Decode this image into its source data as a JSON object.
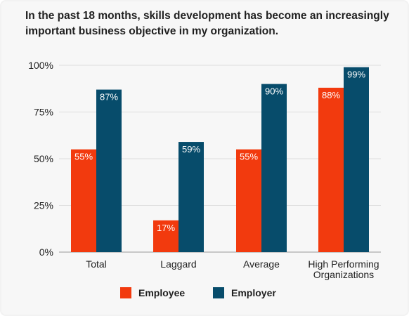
{
  "chart_data": {
    "type": "bar",
    "title": "In the past 18 months, skills development has become an increasingly important business objective in my organization.",
    "categories": [
      [
        "Total"
      ],
      [
        "Laggard"
      ],
      [
        "Average"
      ],
      [
        "High Performing",
        "Organizations"
      ]
    ],
    "series": [
      {
        "name": "Employee",
        "color": "#f23a0e",
        "values": [
          55,
          17,
          55,
          88
        ],
        "labels": [
          "55%",
          "17%",
          "55%",
          "88%"
        ]
      },
      {
        "name": "Employer",
        "color": "#074c6b",
        "values": [
          87,
          59,
          90,
          99
        ],
        "labels": [
          "87%",
          "59%",
          "90%",
          "99%"
        ]
      }
    ],
    "ylim": [
      0,
      100
    ],
    "yticks": [
      {
        "value": 0,
        "label": "0%"
      },
      {
        "value": 25,
        "label": "25%"
      },
      {
        "value": 50,
        "label": "50%"
      },
      {
        "value": 75,
        "label": "75%"
      },
      {
        "value": 100,
        "label": "100%"
      }
    ],
    "grid": true,
    "legend_position": "bottom"
  }
}
